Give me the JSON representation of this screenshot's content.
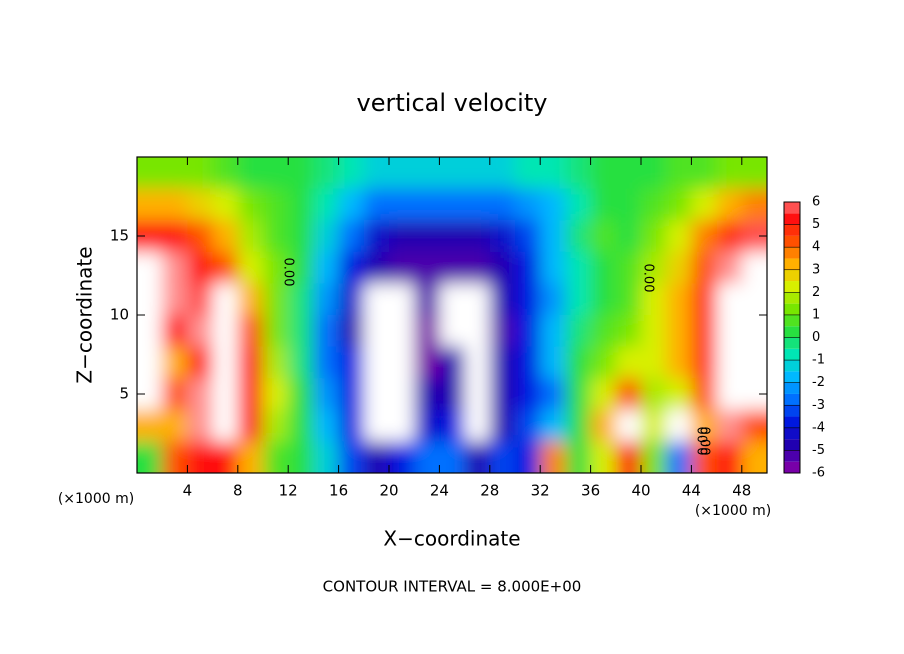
{
  "chart_data": {
    "type": "contour",
    "title": "vertical velocity",
    "xlabel": "X−coordinate",
    "ylabel": "Z−coordinate",
    "x_unit": "(×1000 m)",
    "y_unit": "(×1000 m)",
    "footer": "CONTOUR INTERVAL = 8.000E+00",
    "contour_labels": [
      "0.00",
      "0.00",
      "0.00",
      "0.00"
    ],
    "xlim": [
      0,
      50
    ],
    "ylim": [
      0,
      20
    ],
    "xticks": [
      4,
      8,
      12,
      16,
      20,
      24,
      28,
      32,
      36,
      40,
      44,
      48
    ],
    "yticks": [
      5,
      10,
      15
    ],
    "x": [
      1,
      3,
      5,
      7,
      9,
      11,
      13,
      15,
      17,
      19,
      21,
      23,
      25,
      27,
      29,
      31,
      33,
      35,
      37,
      39,
      41,
      43,
      45,
      47,
      49
    ],
    "z": [
      19,
      17,
      15,
      13,
      11,
      9,
      7,
      5,
      3,
      1
    ],
    "values": [
      [
        1,
        1,
        1,
        0.5,
        0,
        0,
        0,
        -0.5,
        -1,
        -1.5,
        -1.5,
        -1.5,
        -1.5,
        -1.5,
        -1.5,
        -1,
        -1,
        -0.5,
        0,
        0,
        0,
        0.5,
        0.5,
        1,
        1
      ],
      [
        3,
        3,
        2.5,
        2,
        1,
        0.5,
        0,
        -1,
        -2,
        -3,
        -3,
        -3,
        -3,
        -3,
        -3,
        -2.5,
        -2,
        -1,
        0,
        0,
        0.5,
        1,
        2,
        3,
        3.5
      ],
      [
        5,
        5,
        4,
        3,
        1.5,
        0.5,
        0,
        -1.5,
        -3,
        -4.5,
        -5,
        -5,
        -5,
        -5,
        -4.5,
        -3.5,
        -2,
        -0.5,
        0.5,
        0,
        1,
        2,
        3.5,
        4.5,
        5.5
      ],
      [
        7,
        6,
        5,
        4,
        2,
        1,
        0,
        -2,
        -4,
        -5,
        -5.5,
        -5.5,
        -5.5,
        -5.5,
        -5,
        -4,
        -2,
        -1,
        0,
        0.5,
        1.5,
        2.5,
        4,
        6,
        7
      ],
      [
        8,
        6,
        5.5,
        7,
        3,
        1,
        -0.5,
        -2.5,
        -4.5,
        -7,
        -7,
        -5.5,
        -7,
        -7,
        -5,
        -4,
        -2.5,
        -1,
        0,
        0.5,
        2,
        3,
        4.5,
        7,
        8
      ],
      [
        8,
        5,
        6,
        8,
        4,
        1,
        -0.5,
        -3,
        -5,
        -8,
        -8,
        -6,
        -7,
        -8,
        -5.5,
        -4,
        -2,
        -0.5,
        0.5,
        1,
        2,
        3,
        4.5,
        7.5,
        8
      ],
      [
        8,
        3,
        5,
        8,
        5,
        1.5,
        -0.5,
        -3,
        -4,
        -8,
        -8,
        -6,
        -5,
        -8,
        -5,
        -4,
        -2,
        0,
        1,
        2,
        2,
        3,
        4.5,
        7.5,
        8
      ],
      [
        7,
        4,
        6,
        8,
        5,
        2,
        0,
        -2.5,
        -4,
        -8,
        -8,
        -5,
        -5,
        -8,
        -5,
        -4,
        -3,
        0,
        2,
        4,
        1.5,
        2,
        4,
        7,
        7
      ],
      [
        3,
        3,
        6,
        8,
        5,
        1.5,
        0,
        -2,
        -4,
        -8,
        -7,
        -4.5,
        -4,
        -7,
        -5,
        -3.5,
        -2,
        0,
        3,
        7,
        2,
        -7,
        3,
        6,
        4
      ],
      [
        0,
        4,
        5,
        5,
        3,
        0.5,
        0,
        -1.5,
        -3.5,
        -5,
        -4,
        -3,
        -3,
        -5,
        -3.5,
        -4,
        3.5,
        0,
        2,
        5,
        1,
        -3,
        4,
        5,
        3
      ]
    ],
    "colorbar": {
      "lim": [
        -6,
        6
      ],
      "ticks": [
        -6,
        -5,
        -4,
        -3,
        -2,
        -1,
        0,
        1,
        2,
        3,
        4,
        5,
        6
      ],
      "colors": [
        "#7800a8",
        "#2000b0",
        "#0018e0",
        "#0070ff",
        "#00b8ff",
        "#00e6b4",
        "#28e040",
        "#78e600",
        "#d8f000",
        "#ffb000",
        "#ff5000",
        "#ff1010",
        "#ff9090"
      ],
      "out_of_range_color": "#ffffff"
    }
  }
}
